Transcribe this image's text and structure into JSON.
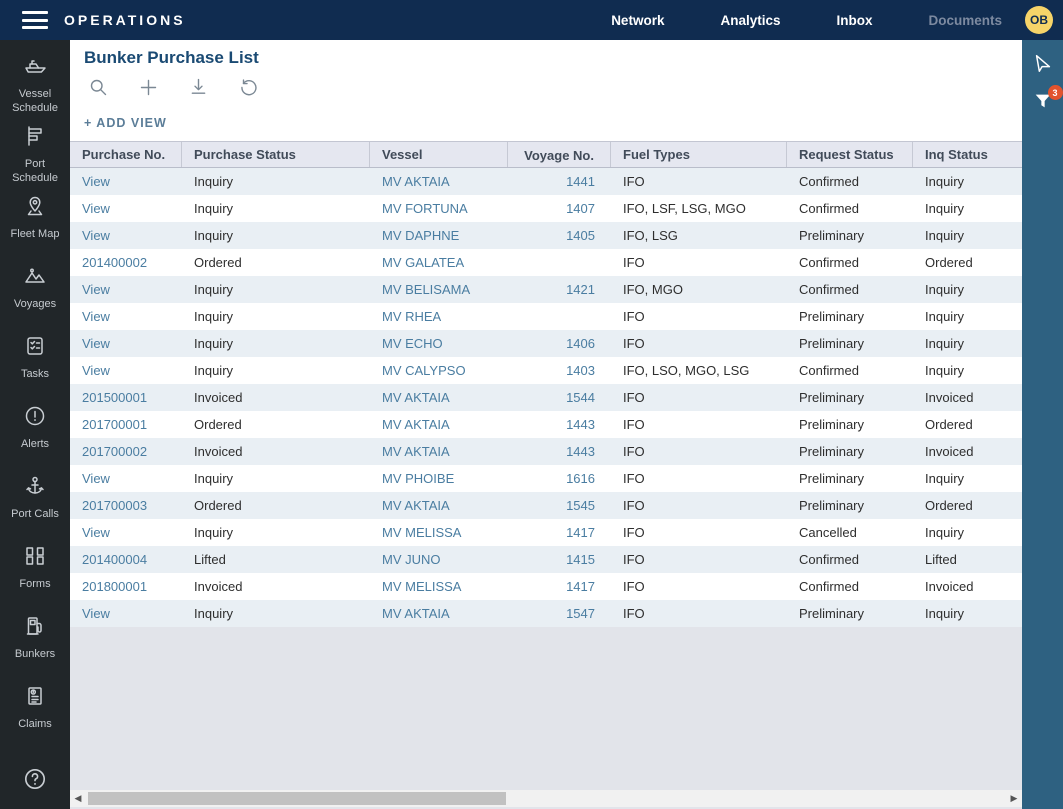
{
  "topbar": {
    "brand": "OPERATIONS",
    "items": [
      {
        "label": "Network",
        "muted": false
      },
      {
        "label": "Analytics",
        "muted": false
      },
      {
        "label": "Inbox",
        "muted": false
      },
      {
        "label": "Documents",
        "muted": true
      }
    ],
    "avatar_initials": "OB"
  },
  "sidebar": {
    "items": [
      {
        "label": "Vessel Schedule",
        "icon": "ship-icon"
      },
      {
        "label": "Port Schedule",
        "icon": "gantt-icon"
      },
      {
        "label": "Fleet Map",
        "icon": "map-pin-icon"
      },
      {
        "label": "Voyages",
        "icon": "mountains-icon"
      },
      {
        "label": "Tasks",
        "icon": "checklist-icon"
      },
      {
        "label": "Alerts",
        "icon": "alert-circle-icon"
      },
      {
        "label": "Port Calls",
        "icon": "anchor-icon"
      },
      {
        "label": "Forms",
        "icon": "documents-icon"
      },
      {
        "label": "Bunkers",
        "icon": "fuel-pump-icon"
      },
      {
        "label": "Claims",
        "icon": "claim-document-icon"
      }
    ],
    "help_icon": "help-icon"
  },
  "page": {
    "title": "Bunker Purchase List",
    "add_view_label": "+ ADD VIEW",
    "toolbar_icons": [
      "search-icon",
      "plus-icon",
      "download-icon",
      "undo-icon"
    ]
  },
  "right_toolbar": {
    "pointer_icon": "cursor-icon",
    "filter_icon": "filter-icon",
    "filter_badge_count": "3"
  },
  "table": {
    "headers": [
      "Purchase No.",
      "Purchase Status",
      "Vessel",
      "Voyage No.",
      "Fuel Types",
      "Request Status",
      "Inq Status"
    ],
    "rows": [
      [
        "View",
        "Inquiry",
        "MV AKTAIA",
        "1441",
        "IFO",
        "Confirmed",
        "Inquiry"
      ],
      [
        "View",
        "Inquiry",
        "MV FORTUNA",
        "1407",
        "IFO, LSF, LSG, MGO",
        "Confirmed",
        "Inquiry"
      ],
      [
        "View",
        "Inquiry",
        "MV DAPHNE",
        "1405",
        "IFO, LSG",
        "Preliminary",
        "Inquiry"
      ],
      [
        "201400002",
        "Ordered",
        "MV GALATEA",
        "",
        "IFO",
        "Confirmed",
        "Ordered"
      ],
      [
        "View",
        "Inquiry",
        "MV BELISAMA",
        "1421",
        "IFO, MGO",
        "Confirmed",
        "Inquiry"
      ],
      [
        "View",
        "Inquiry",
        "MV RHEA",
        "",
        "IFO",
        "Preliminary",
        "Inquiry"
      ],
      [
        "View",
        "Inquiry",
        "MV ECHO",
        "1406",
        "IFO",
        "Preliminary",
        "Inquiry"
      ],
      [
        "View",
        "Inquiry",
        "MV CALYPSO",
        "1403",
        "IFO, LSO, MGO, LSG",
        "Confirmed",
        "Inquiry"
      ],
      [
        "201500001",
        "Invoiced",
        "MV AKTAIA",
        "1544",
        "IFO",
        "Preliminary",
        "Invoiced"
      ],
      [
        "201700001",
        "Ordered",
        "MV AKTAIA",
        "1443",
        "IFO",
        "Preliminary",
        "Ordered"
      ],
      [
        "201700002",
        "Invoiced",
        "MV AKTAIA",
        "1443",
        "IFO",
        "Preliminary",
        "Invoiced"
      ],
      [
        "View",
        "Inquiry",
        "MV PHOIBE",
        "1616",
        "IFO",
        "Preliminary",
        "Inquiry"
      ],
      [
        "201700003",
        "Ordered",
        "MV AKTAIA",
        "1545",
        "IFO",
        "Preliminary",
        "Ordered"
      ],
      [
        "View",
        "Inquiry",
        "MV MELISSA",
        "1417",
        "IFO",
        "Cancelled",
        "Inquiry"
      ],
      [
        "201400004",
        "Lifted",
        "MV JUNO",
        "1415",
        "IFO",
        "Confirmed",
        "Lifted"
      ],
      [
        "201800001",
        "Invoiced",
        "MV MELISSA",
        "1417",
        "IFO",
        "Confirmed",
        "Invoiced"
      ],
      [
        "View",
        "Inquiry",
        "MV AKTAIA",
        "1547",
        "IFO",
        "Preliminary",
        "Inquiry"
      ]
    ]
  },
  "colors": {
    "topbar_bg": "#102c50",
    "sidebar_bg": "#212629",
    "right_strip_bg": "#2e6181",
    "link": "#4a7da1",
    "title": "#1a4a73",
    "header_bg": "#e5e7f0",
    "row_alt_bg": "#e9eff4",
    "filler_bg": "#e2e4ea",
    "badge_bg": "#e2532d",
    "avatar_bg": "#f6d469",
    "muted_nav": "#7d8aa0"
  }
}
